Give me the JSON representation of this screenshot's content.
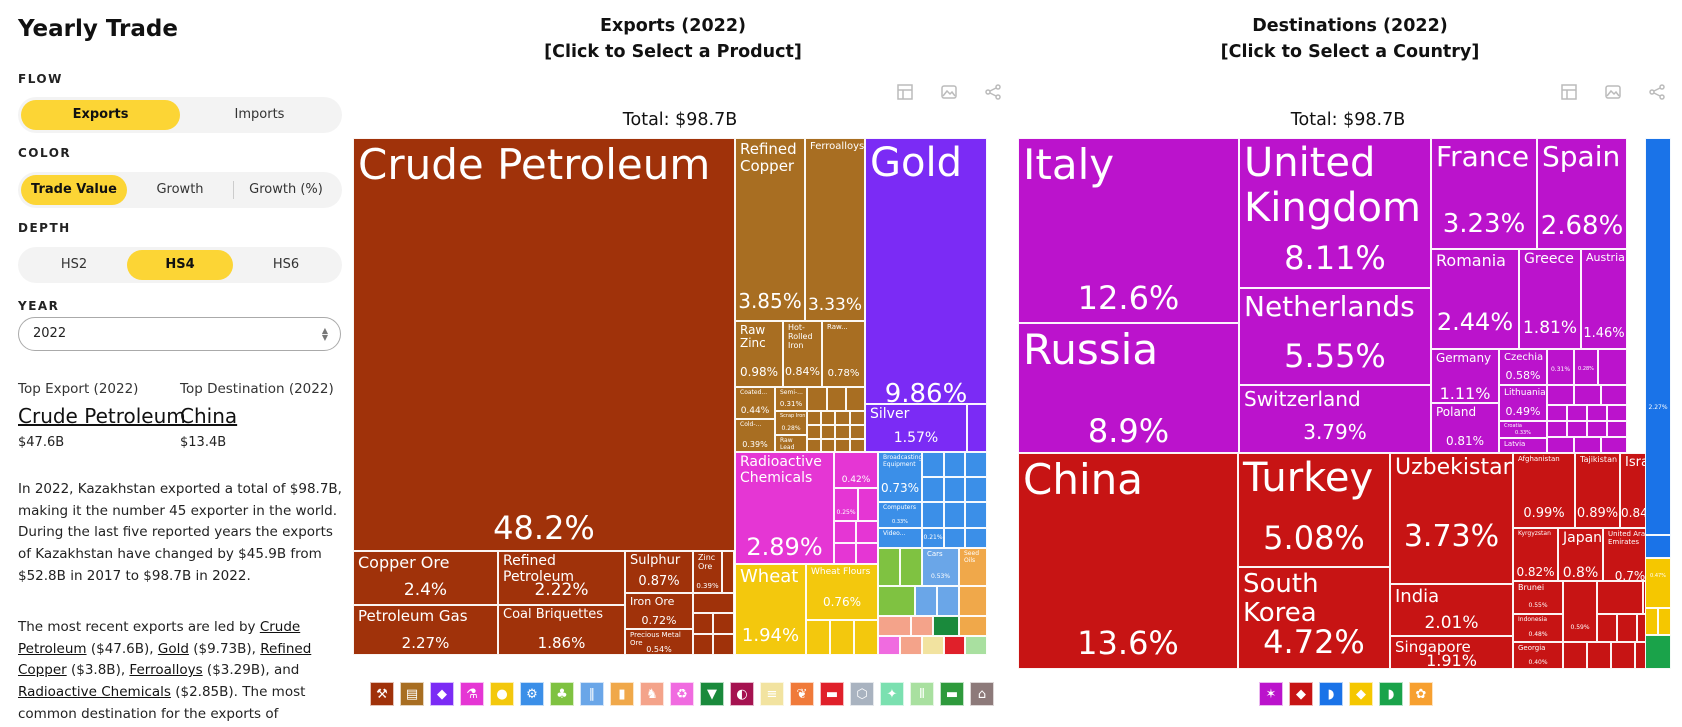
{
  "sidebar": {
    "title": "Yearly Trade",
    "flow_label": "FLOW",
    "flow_options": [
      "Exports",
      "Imports"
    ],
    "color_label": "COLOR",
    "color_options": [
      "Trade Value",
      "Growth",
      "Growth (%)"
    ],
    "depth_label": "DEPTH",
    "depth_options": [
      "HS2",
      "HS4",
      "HS6"
    ],
    "year_label": "YEAR",
    "year_value": "2022",
    "top_export_label": "Top Export (2022)",
    "top_export_value": "Crude Petroleum",
    "top_export_amount": "$47.6B",
    "top_destination_label": "Top Destination (2022)",
    "top_destination_value": "China",
    "top_destination_amount": "$13.4B",
    "paragraph1": "In 2022, Kazakhstan exported a total of $98.7B, making it the number 45 exporter in the world. During the last five reported years the exports of Kazakhstan have changed by $45.9B from $52.8B in 2017 to $98.7B in 2022.",
    "p2_intro": "The most recent exports are led by ",
    "p2_links": [
      "Crude Petroleum",
      "Gold",
      "Refined Copper",
      "Ferroalloys",
      "Radioactive Chemicals"
    ],
    "p2_amounts": [
      " ($47.6B), ",
      " ($9.73B), ",
      " ($3.8B), ",
      " ($3.29B), and ",
      " ($2.85B). "
    ],
    "p2_tail": "The most common destination for the exports of"
  },
  "exports": {
    "title_line1": "Exports (2022)",
    "title_line2": "[Click to Select a Product]",
    "total": "Total: $98.7B"
  },
  "destinations": {
    "title_line1": "Destinations (2022)",
    "title_line2": "[Click to Select a Country]",
    "total": "Total: $98.7B"
  },
  "toolbar_icons": [
    "table-icon",
    "image-icon",
    "share-icon"
  ],
  "colors": {
    "accent": "#fcd535",
    "minerals": "#a0320a",
    "metals": "#a86e22",
    "precious": "#7b2bf5",
    "chemicals": "#e536d4",
    "vegetable": "#f3c80d",
    "machines": "#3b8fe8",
    "europe": "#bb13cc",
    "asia": "#c71414",
    "north_america": "#1a73e8",
    "africa": "#f5c700",
    "south_america": "#1aa34a"
  },
  "chart_data": [
    {
      "type": "treemap",
      "title": "Exports (2022)",
      "subtitle": "Total: $98.7B",
      "items": [
        {
          "name": "Crude Petroleum",
          "share": 48.2,
          "label": "48.2%"
        },
        {
          "name": "Copper Ore",
          "share": 2.4,
          "label": "2.4%"
        },
        {
          "name": "Refined Petroleum",
          "share": 2.22,
          "label": "2.22%"
        },
        {
          "name": "Petroleum Gas",
          "share": 2.27,
          "label": "2.27%"
        },
        {
          "name": "Coal Briquettes",
          "share": 1.86,
          "label": "1.86%"
        },
        {
          "name": "Sulphur",
          "share": 0.87,
          "label": "0.87%"
        },
        {
          "name": "Iron Ore",
          "share": 0.72,
          "label": "0.72%"
        },
        {
          "name": "Zinc Ore",
          "share": 0.39,
          "label": "0.39%"
        },
        {
          "name": "Precious Metal Ore",
          "share": 0.54,
          "label": "0.54%"
        },
        {
          "name": "Refined Copper",
          "share": 3.85,
          "label": "3.85%"
        },
        {
          "name": "Ferroalloys",
          "share": 3.33,
          "label": "3.33%"
        },
        {
          "name": "Raw Zinc",
          "share": 0.98,
          "label": "0.98%"
        },
        {
          "name": "Hot-Rolled Iron",
          "share": 0.84,
          "label": "0.84%"
        },
        {
          "name": "Raw...",
          "share": 0.78,
          "label": "0.78%"
        },
        {
          "name": "Coated...",
          "share": 0.44,
          "label": "0.44%"
        },
        {
          "name": "Semi-...",
          "share": 0.31,
          "label": "0.31%"
        },
        {
          "name": "Scrap Iron",
          "share": 0.28,
          "label": "0.28%"
        },
        {
          "name": "Cold-...",
          "share": 0.39,
          "label": "0.39%"
        },
        {
          "name": "Raw Lead",
          "share": null,
          "label": ""
        },
        {
          "name": "Gold",
          "share": 9.86,
          "label": "9.86%"
        },
        {
          "name": "Silver",
          "share": 1.57,
          "label": "1.57%"
        },
        {
          "name": "Radioactive Chemicals",
          "share": 2.89,
          "label": "2.89%"
        },
        {
          "name": "",
          "share": 0.42,
          "label": "0.42%"
        },
        {
          "name": "",
          "share": 0.25,
          "label": "0.25%"
        },
        {
          "name": "Wheat",
          "share": 1.94,
          "label": "1.94%"
        },
        {
          "name": "Wheat Flours",
          "share": 0.76,
          "label": "0.76%"
        },
        {
          "name": "Broadcasting Equipment",
          "share": 0.73,
          "label": "0.73%"
        },
        {
          "name": "Computers",
          "share": 0.33,
          "label": "0.33%"
        },
        {
          "name": "Video...",
          "share": null,
          "label": ""
        },
        {
          "name": "",
          "share": 0.21,
          "label": "0.21%"
        },
        {
          "name": "Cars",
          "share": 0.53,
          "label": "0.53%"
        },
        {
          "name": "Seed Oils",
          "share": null,
          "label": ""
        }
      ]
    },
    {
      "type": "treemap",
      "title": "Destinations (2022)",
      "subtitle": "Total: $98.7B",
      "items": [
        {
          "name": "Italy",
          "share": 12.6,
          "label": "12.6%"
        },
        {
          "name": "Russia",
          "share": 8.9,
          "label": "8.9%"
        },
        {
          "name": "United Kingdom",
          "share": 8.11,
          "label": "8.11%"
        },
        {
          "name": "Netherlands",
          "share": 5.55,
          "label": "5.55%"
        },
        {
          "name": "Switzerland",
          "share": 3.79,
          "label": "3.79%"
        },
        {
          "name": "France",
          "share": 3.23,
          "label": "3.23%"
        },
        {
          "name": "Spain",
          "share": 2.68,
          "label": "2.68%"
        },
        {
          "name": "Romania",
          "share": 2.44,
          "label": "2.44%"
        },
        {
          "name": "Greece",
          "share": 1.81,
          "label": "1.81%"
        },
        {
          "name": "Austria",
          "share": 1.46,
          "label": "1.46%"
        },
        {
          "name": "Germany",
          "share": 1.11,
          "label": "1.11%"
        },
        {
          "name": "Czechia",
          "share": 0.58,
          "label": "0.58%"
        },
        {
          "name": "",
          "share": 0.31,
          "label": "0.31%"
        },
        {
          "name": "",
          "share": 0.28,
          "label": "0.28%"
        },
        {
          "name": "Lithuania",
          "share": 0.49,
          "label": "0.49%"
        },
        {
          "name": "Poland",
          "share": 0.81,
          "label": "0.81%"
        },
        {
          "name": "Croatia",
          "share": 0.33,
          "label": "0.33%"
        },
        {
          "name": "Latvia",
          "share": null,
          "label": ""
        },
        {
          "name": "China",
          "share": 13.6,
          "label": "13.6%"
        },
        {
          "name": "Turkey",
          "share": 5.08,
          "label": "5.08%"
        },
        {
          "name": "South Korea",
          "share": 4.72,
          "label": "4.72%"
        },
        {
          "name": "Uzbekistan",
          "share": 3.73,
          "label": "3.73%"
        },
        {
          "name": "India",
          "share": 2.01,
          "label": "2.01%"
        },
        {
          "name": "Singapore",
          "share": 1.91,
          "label": "1.91%"
        },
        {
          "name": "Afghanistan",
          "share": 0.99,
          "label": "0.99%"
        },
        {
          "name": "Tajikistan",
          "share": 0.89,
          "label": "0.89%"
        },
        {
          "name": "Israel",
          "share": 0.84,
          "label": "0.84%"
        },
        {
          "name": "Kyrgyzstan",
          "share": 0.82,
          "label": "0.82%"
        },
        {
          "name": "Japan",
          "share": 0.8,
          "label": "0.8%"
        },
        {
          "name": "United Arab Emirates",
          "share": 0.7,
          "label": "0.7%"
        },
        {
          "name": "Brunei",
          "share": 0.55,
          "label": "0.55%"
        },
        {
          "name": "Indonesia",
          "share": 0.48,
          "label": "0.48%"
        },
        {
          "name": "",
          "share": 0.59,
          "label": "0.59%"
        },
        {
          "name": "Iran",
          "share": null,
          "label": ""
        },
        {
          "name": "Georgia",
          "share": 0.4,
          "label": "0.40%"
        },
        {
          "name": "",
          "share": 2.27,
          "label": "2.27%"
        },
        {
          "name": "",
          "share": 0.89,
          "label": "0.89%"
        },
        {
          "name": "",
          "share": 0.47,
          "label": "0.47%"
        }
      ]
    }
  ],
  "legend_exports": [
    {
      "name": "mineral-products-icon",
      "color": "#a0320a",
      "glyph": "⚒"
    },
    {
      "name": "metals-icon",
      "color": "#a86e22",
      "glyph": "▤"
    },
    {
      "name": "precious-metals-icon",
      "color": "#7b2bf5",
      "glyph": "◆"
    },
    {
      "name": "chemical-products-icon",
      "color": "#e536d4",
      "glyph": "⚗"
    },
    {
      "name": "animal-vegetable-fats-icon",
      "color": "#f3c80d",
      "glyph": "●"
    },
    {
      "name": "machines-icon",
      "color": "#3b8fe8",
      "glyph": "⚙"
    },
    {
      "name": "vegetable-products-icon",
      "color": "#7fc241",
      "glyph": "♣"
    },
    {
      "name": "transportation-icon",
      "color": "#6aa6e8",
      "glyph": "∥"
    },
    {
      "name": "foodstuffs-icon",
      "color": "#f0a84a",
      "glyph": "▮"
    },
    {
      "name": "animal-products-icon",
      "color": "#f4a38a",
      "glyph": "♞"
    },
    {
      "name": "plastics-rubbers-icon",
      "color": "#f06be0",
      "glyph": "♻"
    },
    {
      "name": "textiles-icon",
      "color": "#1a8a3c",
      "glyph": "▼"
    },
    {
      "name": "instruments-icon",
      "color": "#a51250",
      "glyph": "◐"
    },
    {
      "name": "paper-goods-icon",
      "color": "#f2e3a0",
      "glyph": "≡"
    },
    {
      "name": "wood-products-icon",
      "color": "#f07a3a",
      "glyph": "❦"
    },
    {
      "name": "miscellaneous-icon",
      "color": "#e0202a",
      "glyph": "▬"
    },
    {
      "name": "stone-and-glass-icon",
      "color": "#a9b3c0",
      "glyph": "⬡"
    },
    {
      "name": "animal-hides-icon",
      "color": "#7be0b0",
      "glyph": "✦"
    },
    {
      "name": "footwear-headwear-icon",
      "color": "#a9e0a0",
      "glyph": "⫴"
    },
    {
      "name": "weapons-icon",
      "color": "#2e9a3c",
      "glyph": "▬"
    },
    {
      "name": "arts-and-antiques-icon",
      "color": "#8d7a7a",
      "glyph": "⌂"
    }
  ],
  "legend_destinations": [
    {
      "name": "europe-icon",
      "color": "#bb13cc",
      "glyph": "✶"
    },
    {
      "name": "asia-icon",
      "color": "#c71414",
      "glyph": "◆"
    },
    {
      "name": "north-america-icon",
      "color": "#1a73e8",
      "glyph": "◗"
    },
    {
      "name": "africa-icon",
      "color": "#f5c700",
      "glyph": "◆"
    },
    {
      "name": "south-america-icon",
      "color": "#1aa34a",
      "glyph": "◗"
    },
    {
      "name": "oceania-icon",
      "color": "#f7a030",
      "glyph": "✿"
    }
  ]
}
